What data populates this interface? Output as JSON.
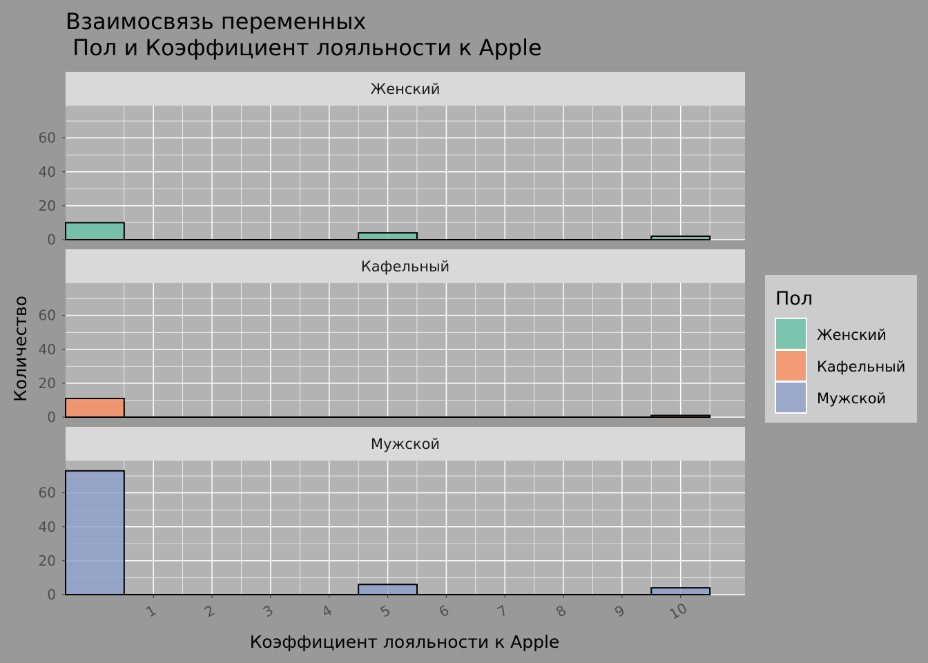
{
  "chart_data": {
    "type": "bar",
    "title_line1": "Взаимосвязь переменных",
    "title_line2": " Пол и Коэффициент лояльности к Apple",
    "xlabel": "Коэффициент лояльности к Apple",
    "ylabel": "Количество",
    "x_ticks": [
      "1",
      "2",
      "3",
      "4",
      "5",
      "6",
      "7",
      "8",
      "9",
      "10"
    ],
    "y_ticks": [
      0,
      20,
      40,
      60
    ],
    "ylim": [
      0,
      79
    ],
    "xlim": [
      -0.5,
      11.1
    ],
    "bins": [
      {
        "from": -0.5,
        "to": 0.5
      },
      {
        "from": 0.5,
        "to": 1.5
      },
      {
        "from": 1.5,
        "to": 2.5
      },
      {
        "from": 2.5,
        "to": 3.5
      },
      {
        "from": 3.5,
        "to": 4.5
      },
      {
        "from": 4.5,
        "to": 5.5
      },
      {
        "from": 5.5,
        "to": 6.5
      },
      {
        "from": 6.5,
        "to": 7.5
      },
      {
        "from": 7.5,
        "to": 8.5
      },
      {
        "from": 8.5,
        "to": 9.5
      },
      {
        "from": 9.5,
        "to": 10.5
      }
    ],
    "facets": [
      {
        "name": "Женский",
        "color": "#66C2A5",
        "values": [
          10,
          0,
          0,
          0,
          0,
          4,
          0,
          0,
          0,
          0,
          2
        ]
      },
      {
        "name": "Кафельный",
        "color": "#FC8D62",
        "values": [
          11,
          0,
          0,
          0,
          0,
          0,
          0,
          0,
          0,
          0,
          1
        ]
      },
      {
        "name": "Мужской",
        "color": "#8DA0CB",
        "values": [
          73,
          0,
          0,
          0,
          0,
          6,
          0,
          0,
          0,
          0,
          4
        ]
      }
    ],
    "legend": {
      "title": "Пол",
      "position": "right",
      "items": [
        {
          "label": "Женский",
          "color": "#66C2A5"
        },
        {
          "label": "Кафельный",
          "color": "#FC8D62"
        },
        {
          "label": "Мужской",
          "color": "#8DA0CB"
        }
      ]
    },
    "grid": true,
    "colors": {
      "background": "#999999",
      "panel": "#B3B3B3",
      "strip": "#D9D9D9",
      "legend_bg": "#CCCCCC",
      "grid": "#FFFFFF",
      "bar_outline": "#000000"
    }
  }
}
